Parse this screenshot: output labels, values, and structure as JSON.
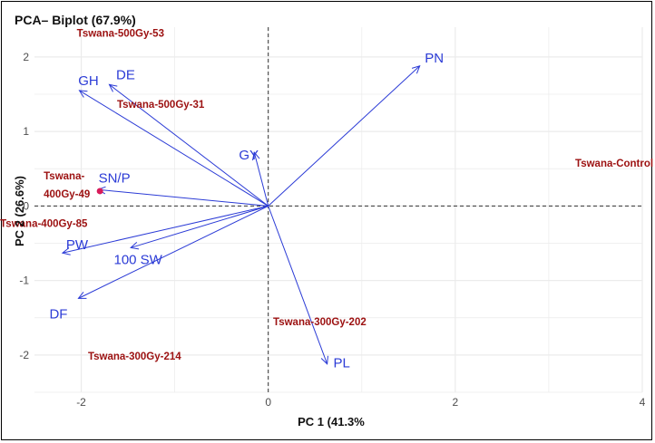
{
  "chart_data": {
    "type": "scatter",
    "subtype": "pca-biplot",
    "title": "PCA– Biplot (67.9%)",
    "xlabel": "PC 1 (41.3%",
    "ylabel": "PC 2 (26.6%)",
    "xlim": [
      -2.5,
      4.0
    ],
    "ylim": [
      -2.5,
      2.4
    ],
    "xticks": [
      -2,
      0,
      2,
      4
    ],
    "yticks": [
      -2,
      -1,
      0,
      1,
      2
    ],
    "grid": true,
    "reference_lines": {
      "x": 0,
      "y": 0,
      "style": "dashed"
    },
    "loadings": [
      {
        "name": "PN",
        "x": 1.62,
        "y": 1.88
      },
      {
        "name": "GH",
        "x": -2.02,
        "y": 1.55
      },
      {
        "name": "DE",
        "x": -1.7,
        "y": 1.63
      },
      {
        "name": "GY",
        "x": -0.15,
        "y": 0.72
      },
      {
        "name": "SN/P",
        "x": -1.82,
        "y": 0.22
      },
      {
        "name": "PW",
        "x": -2.2,
        "y": -0.63
      },
      {
        "name": "100 SW",
        "x": -1.47,
        "y": -0.56
      },
      {
        "name": "DF",
        "x": -2.03,
        "y": -1.24
      },
      {
        "name": "PL",
        "x": 0.63,
        "y": -2.12
      }
    ],
    "observations": [
      {
        "name": "Tswana-500Gy-53",
        "x": -1.58,
        "y": 2.27
      },
      {
        "name": "Tswana-500Gy-31",
        "x": -1.15,
        "y": 1.32
      },
      {
        "name": "Tswana-400Gy-49",
        "x": -1.8,
        "y": 0.2,
        "label_lines": [
          "Tswana-",
          "400Gy-49"
        ]
      },
      {
        "name": "Tswana-400Gy-85",
        "x": -2.4,
        "y": -0.28
      },
      {
        "name": "Tswana-300Gy-214",
        "x": -1.43,
        "y": -2.06
      },
      {
        "name": "Tswana-300Gy-202",
        "x": 0.55,
        "y": -1.6
      },
      {
        "name": "Tswana-Control",
        "x": 3.7,
        "y": 0.53
      }
    ],
    "colors": {
      "loading": "#2b3bd6",
      "observation": "#9c1111",
      "point_marker": "#d81b5a",
      "grid": "#ebebeb"
    }
  }
}
